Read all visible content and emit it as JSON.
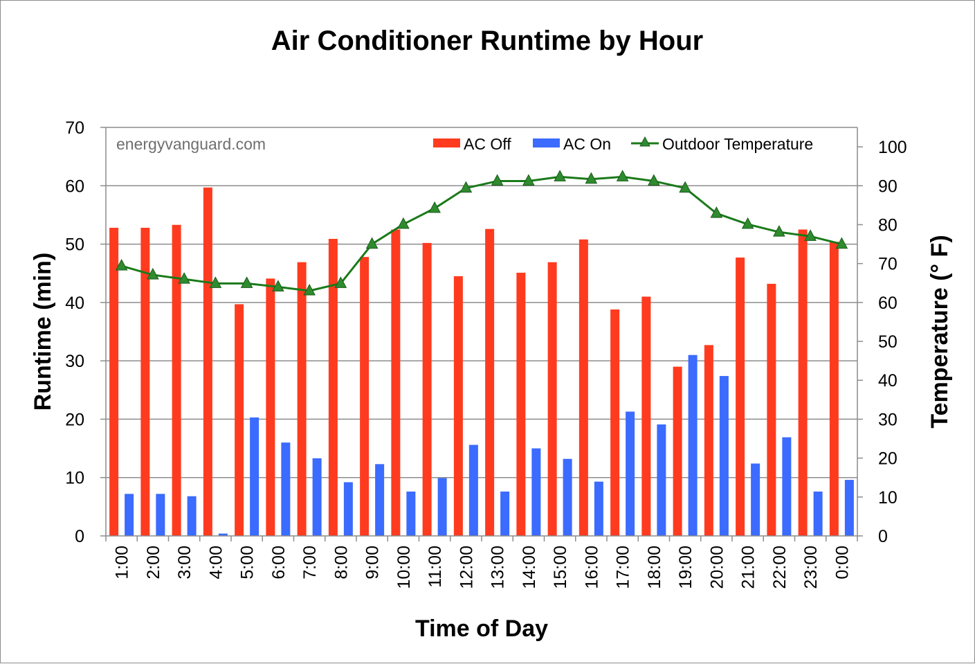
{
  "chart_data": {
    "type": "bar",
    "title": "Air Conditioner Runtime by Hour",
    "xlabel": "Time of Day",
    "ylabel": "Runtime (min)",
    "y2label": "Temperature (° F)",
    "watermark": "energyvanguard.com",
    "categories": [
      "1:00",
      "2:00",
      "3:00",
      "4:00",
      "5:00",
      "6:00",
      "7:00",
      "8:00",
      "9:00",
      "10:00",
      "11:00",
      "12:00",
      "13:00",
      "14:00",
      "15:00",
      "16:00",
      "17:00",
      "18:00",
      "19:00",
      "20:00",
      "21:00",
      "22:00",
      "23:00",
      "0:00"
    ],
    "ylim": [
      0,
      70
    ],
    "yticks": [
      "0",
      "10",
      "20",
      "30",
      "40",
      "50",
      "60",
      "70"
    ],
    "y2lim": [
      0,
      105
    ],
    "y2ticks": [
      "0",
      "10",
      "20",
      "30",
      "40",
      "50",
      "60",
      "70",
      "80",
      "90",
      "100"
    ],
    "grid": true,
    "legend_position": "top-right",
    "series": [
      {
        "name": "AC Off",
        "kind": "bar",
        "axis": "left",
        "color": "#ff3b1f",
        "values": [
          52.8,
          52.8,
          53.3,
          59.7,
          39.7,
          44.1,
          46.9,
          50.9,
          47.8,
          52.5,
          50.2,
          44.5,
          52.6,
          45.1,
          46.9,
          50.8,
          38.8,
          41.0,
          29.0,
          32.7,
          47.7,
          43.2,
          52.5,
          50.4
        ]
      },
      {
        "name": "AC On",
        "kind": "bar",
        "axis": "left",
        "color": "#3b6bff",
        "values": [
          7.2,
          7.2,
          6.8,
          0.4,
          20.3,
          16.0,
          13.3,
          9.2,
          12.3,
          7.6,
          9.9,
          15.6,
          7.6,
          15.0,
          13.2,
          9.3,
          21.3,
          19.1,
          31.0,
          27.4,
          12.4,
          16.9,
          7.6,
          9.6
        ]
      },
      {
        "name": "Outdoor Temperature",
        "kind": "line",
        "axis": "right",
        "color": "#1a7a1a",
        "marker_color": "#2e8b2e",
        "values": [
          69.4,
          67.1,
          66.0,
          64.9,
          64.9,
          64.0,
          63.0,
          64.9,
          75.0,
          80.1,
          84.2,
          89.4,
          91.2,
          91.2,
          92.3,
          91.7,
          92.3,
          91.2,
          89.4,
          82.9,
          80.1,
          78.1,
          77.0,
          75.0
        ]
      }
    ]
  }
}
